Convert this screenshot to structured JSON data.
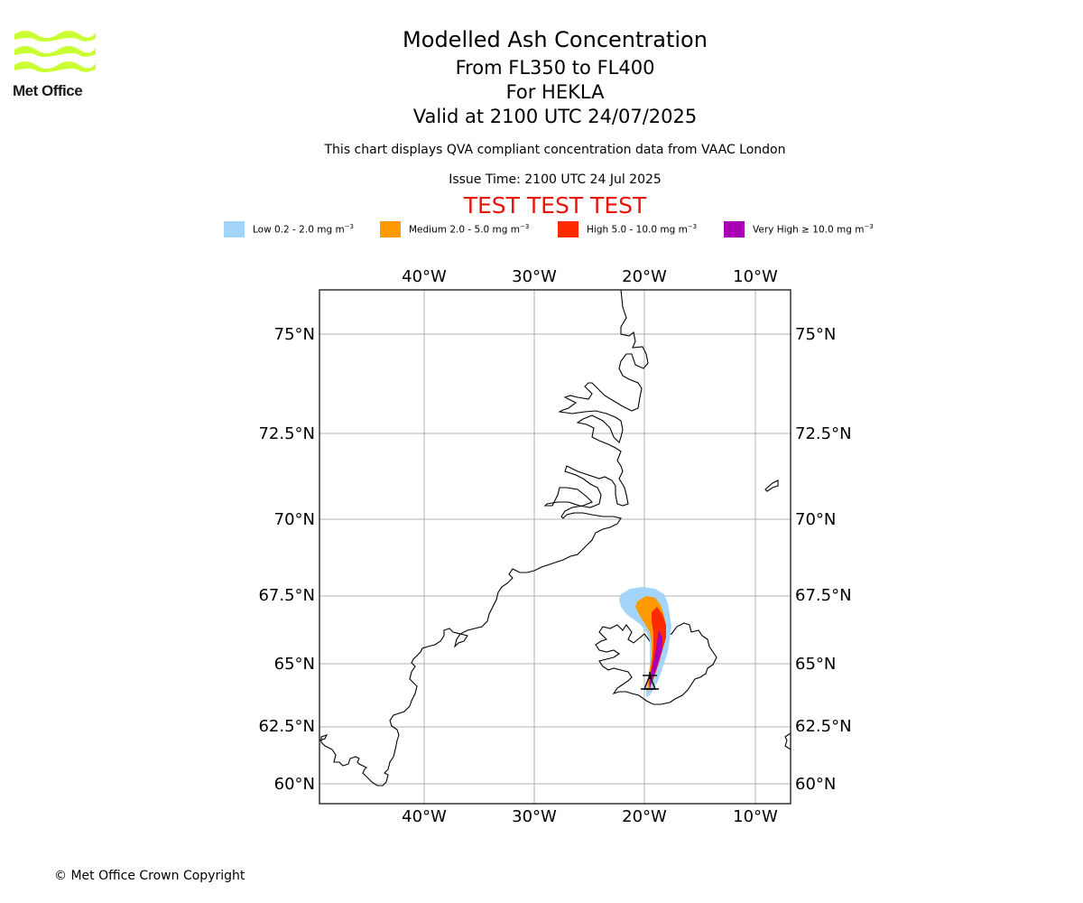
{
  "logo": {
    "text": "Met Office",
    "colors": {
      "waves": "#c9ff33",
      "text": "#1a1a1a"
    }
  },
  "title": {
    "line1": "Modelled Ash Concentration",
    "line2": "From FL350 to FL400",
    "line3": "For HEKLA",
    "line4": "Valid at 2100 UTC 24/07/2025"
  },
  "subtitle": "This chart displays QVA compliant concentration data from VAAC London",
  "issue_time": "Issue Time: 2100 UTC 24 Jul 2025",
  "test_banner": "TEST TEST TEST",
  "legend": [
    {
      "label": "Low 0.2 - 2.0 mg m",
      "exp": "−3",
      "color": "#a3d4fa"
    },
    {
      "label": "Medium 2.0 - 5.0 mg m",
      "exp": "−3",
      "color": "#ff9a00"
    },
    {
      "label": "High 5.0 - 10.0 mg m",
      "exp": "−3",
      "color": "#ff2a00"
    },
    {
      "label": "Very High ≥ 10.0 mg m",
      "exp": "−3",
      "color": "#aa00b4"
    }
  ],
  "map": {
    "lon_ticks": [
      "40°W",
      "30°W",
      "20°W",
      "10°W"
    ],
    "lat_ticks": [
      "75°N",
      "72.5°N",
      "70°N",
      "67.5°N",
      "65°N",
      "62.5°N",
      "60°N"
    ],
    "volcano": "HEKLA",
    "gridlines": true
  },
  "copyright": "© Met Office Crown Copyright"
}
